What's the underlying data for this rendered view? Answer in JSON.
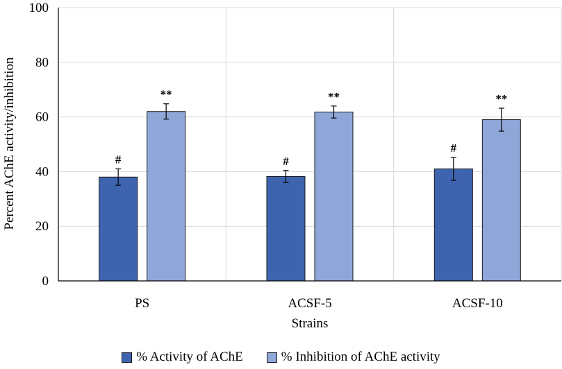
{
  "chart_data": {
    "type": "bar",
    "title": "",
    "xlabel": "Strains",
    "ylabel": "Percent AChE activity/inhibition",
    "categories": [
      "PS",
      "ACSF-5",
      "ACSF-10"
    ],
    "ylim": [
      0,
      100
    ],
    "yticks": [
      0,
      20,
      40,
      60,
      80,
      100
    ],
    "grid": true,
    "legend_position": "bottom",
    "series": [
      {
        "name": "% Activity of AChE",
        "color": "#3e64af",
        "values": [
          38,
          38.2,
          41
        ],
        "errors": [
          3,
          2.2,
          4.2
        ],
        "annotations": [
          "#",
          "#",
          "#"
        ]
      },
      {
        "name": "% Inhibition of AChE activity",
        "color": "#8fa6d8",
        "values": [
          62,
          61.8,
          59
        ],
        "errors": [
          2.8,
          2.2,
          4.2
        ],
        "annotations": [
          "**",
          "**",
          "**"
        ]
      }
    ]
  }
}
